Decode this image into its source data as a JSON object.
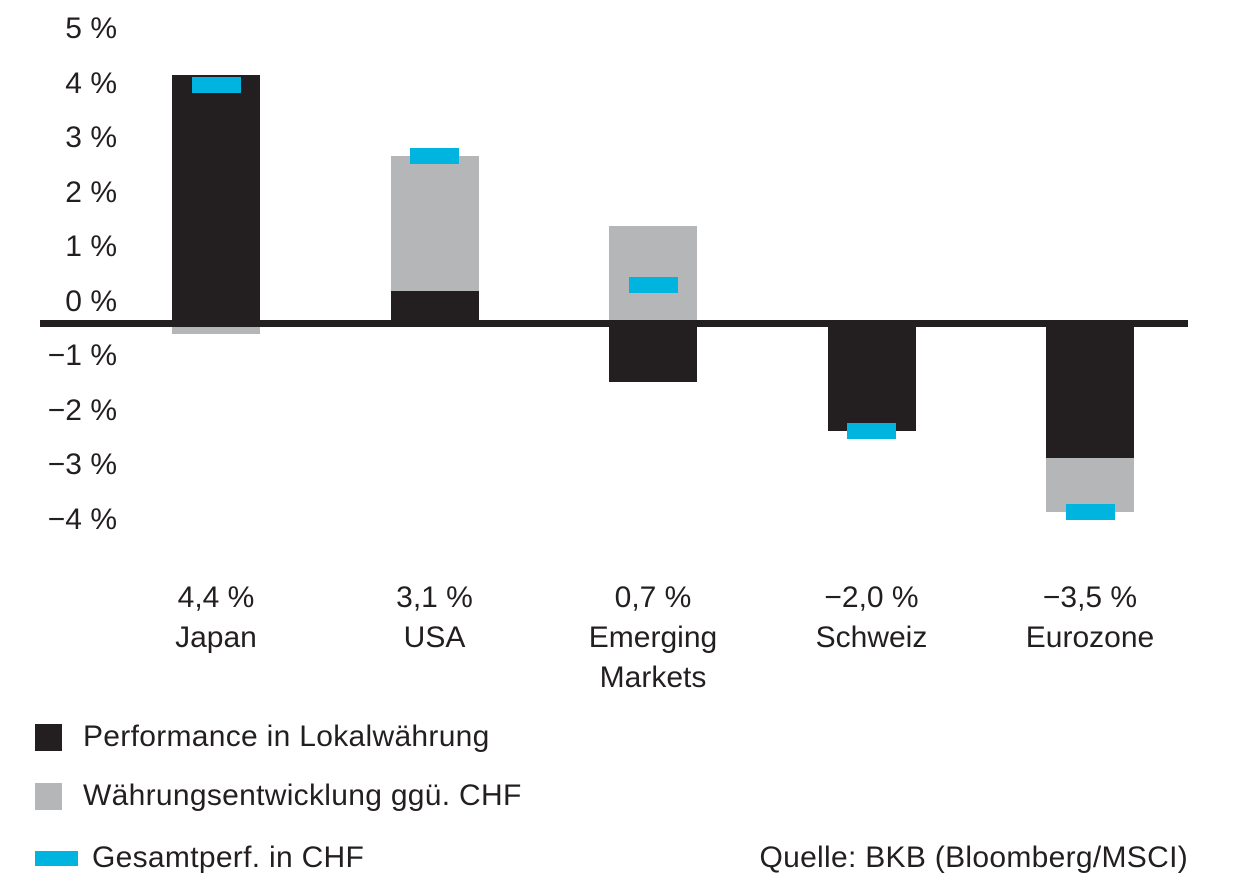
{
  "colors": {
    "background": "#ffffff",
    "text": "#231f20",
    "axis": "#231f20",
    "bar_local": "#231f20",
    "bar_currency": "#b4b6b8",
    "marker_total": "#00b4e0"
  },
  "chart_data": {
    "type": "bar",
    "variant": "stacked bars (local performance + currency effect) with floating total markers",
    "title": "",
    "xlabel": "",
    "ylabel": "",
    "unit": "%",
    "categories": [
      "Japan",
      "USA",
      "Emerging Markets",
      "Schweiz",
      "Eurozone"
    ],
    "series": [
      {
        "name": "Performance in Lokalwährung",
        "color": "#231f20",
        "values": [
          4.6,
          0.6,
          -1.1,
          -2.0,
          -2.5
        ]
      },
      {
        "name": "Währungsentwicklung ggü. CHF",
        "color": "#b4b6b8",
        "values": [
          -0.2,
          2.5,
          1.8,
          0.0,
          -1.0
        ]
      },
      {
        "name": "Gesamtperf. in CHF",
        "color": "#00b4e0",
        "values": [
          4.4,
          3.1,
          0.7,
          -2.0,
          -3.5
        ]
      }
    ],
    "category_value_labels": [
      "4,4 %",
      "3,1 %",
      "0,7 %",
      "−2,0 %",
      "−3,5 %"
    ],
    "y_tick_labels": [
      "5 %",
      "4 %",
      "3 %",
      "2 %",
      "1 %",
      "0 %",
      "−1 %",
      "−2 %",
      "−3 %",
      "−4 %"
    ],
    "y_tick_values": [
      5,
      4,
      3,
      2,
      1,
      0,
      -1,
      -2,
      -3,
      -4
    ],
    "ylim": [
      -4.6,
      5.4
    ],
    "grid": false,
    "legend_position": "bottom-left"
  },
  "source": {
    "label": "Quelle: BKB (Bloomberg/MSCI)"
  }
}
